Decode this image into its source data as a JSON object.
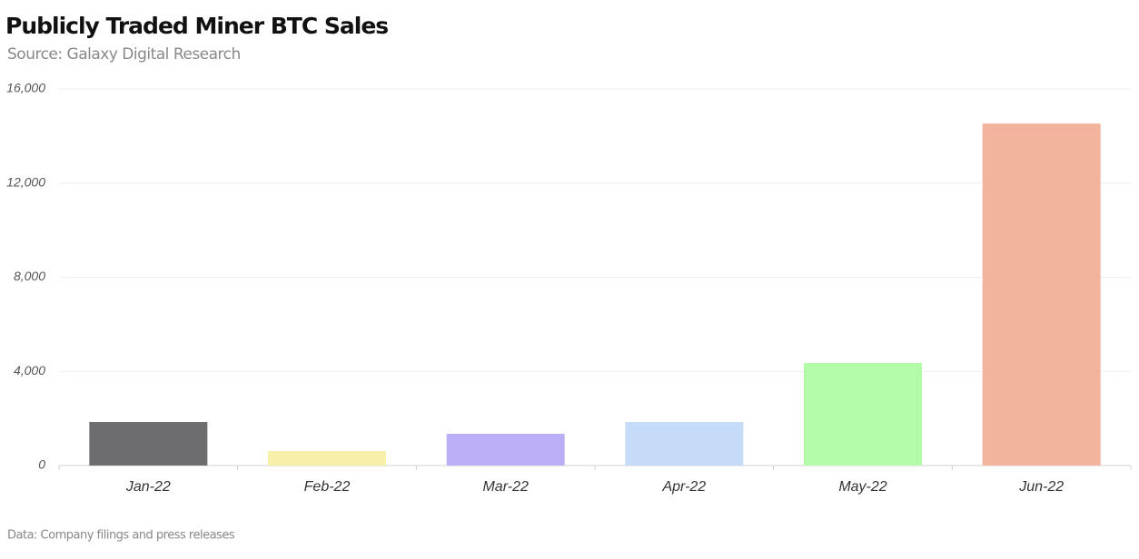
{
  "chart_data": {
    "type": "bar",
    "title": "Publicly Traded Miner BTC Sales",
    "subtitle": "Source: Galaxy Digital Research",
    "footnote": "Data: Company filings and press releases",
    "categories": [
      "Jan-22",
      "Feb-22",
      "Mar-22",
      "Apr-22",
      "May-22",
      "Jun-22"
    ],
    "values": [
      1850,
      620,
      1350,
      1850,
      4360,
      14530
    ],
    "colors": [
      "#6d6d70",
      "#f7efaa",
      "#bcadf7",
      "#c4dcf8",
      "#b4fbaa",
      "#f2b49c"
    ],
    "ylim": [
      0,
      16000
    ],
    "yticks": [
      0,
      {
        "value": 4000,
        "label": "4,000"
      },
      {
        "value": 8000,
        "label": "8,000"
      },
      {
        "value": 12000,
        "label": "12,000"
      },
      {
        "value": 16000,
        "label": "16,000"
      }
    ],
    "grid": true
  }
}
